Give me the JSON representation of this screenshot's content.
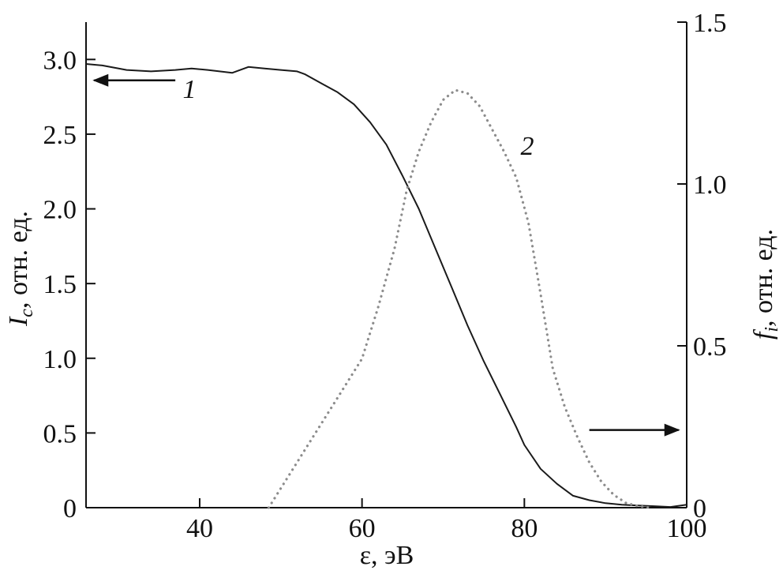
{
  "chart_data": {
    "type": "line",
    "xlabel": "ε, эВ",
    "ylabel_left": {
      "symbol": "I",
      "subscript": "c",
      "rest": ", отн. ед."
    },
    "ylabel_right": {
      "symbol": "f",
      "subscript": "i",
      "rest": ", отн. ед."
    },
    "xlim": [
      26,
      100
    ],
    "ylim_left": [
      0,
      3.25
    ],
    "ylim_right": [
      0,
      1.5
    ],
    "x_ticks": [
      "40",
      "60",
      "80",
      "100"
    ],
    "x_tick_values": [
      40,
      60,
      80,
      100
    ],
    "y_left_ticks": [
      "0",
      "0.5",
      "1.0",
      "1.5",
      "2.0",
      "2.5",
      "3.0"
    ],
    "y_left_tick_values": [
      0,
      0.5,
      1.0,
      1.5,
      2.0,
      2.5,
      3.0
    ],
    "y_right_ticks": [
      "0",
      "0.5",
      "1.0",
      "1.5"
    ],
    "y_right_tick_values": [
      0,
      0.5,
      1.0,
      1.5
    ],
    "grid": false,
    "series": [
      {
        "label": "1",
        "axis": "left",
        "style": "solid",
        "color": "#1a1a1a",
        "x": [
          26,
          28,
          31,
          34,
          37,
          39,
          41,
          44,
          45,
          46,
          48,
          50,
          52,
          53,
          55,
          57,
          59,
          61,
          63,
          65,
          67,
          69,
          71,
          73,
          75,
          77,
          79,
          80,
          82,
          84,
          86,
          88,
          90,
          92,
          94,
          96,
          98,
          100
        ],
        "y": [
          2.97,
          2.96,
          2.93,
          2.92,
          2.93,
          2.94,
          2.93,
          2.91,
          2.93,
          2.95,
          2.94,
          2.93,
          2.92,
          2.9,
          2.84,
          2.78,
          2.7,
          2.58,
          2.43,
          2.22,
          2.0,
          1.74,
          1.48,
          1.22,
          0.98,
          0.76,
          0.54,
          0.42,
          0.26,
          0.16,
          0.08,
          0.05,
          0.03,
          0.02,
          0.015,
          0.01,
          0.005,
          0.02
        ]
      },
      {
        "label": "2",
        "axis": "right",
        "style": "dotted",
        "color": "#8c8c8c",
        "x": [
          48.5,
          51,
          54,
          57,
          60,
          62,
          64,
          65.5,
          67,
          68.5,
          70,
          71.5,
          73,
          74.5,
          76,
          77.5,
          79,
          80.5,
          82,
          83.5,
          85,
          86.5,
          88,
          89.5,
          91,
          92.5,
          94,
          95.5
        ],
        "y": [
          0.0,
          0.1,
          0.22,
          0.34,
          0.46,
          0.62,
          0.8,
          0.98,
          1.1,
          1.19,
          1.26,
          1.29,
          1.28,
          1.24,
          1.17,
          1.1,
          1.02,
          0.88,
          0.66,
          0.43,
          0.31,
          0.22,
          0.14,
          0.08,
          0.04,
          0.015,
          0.005,
          0.0
        ]
      }
    ],
    "annotations": [
      {
        "type": "arrow",
        "direction": "left",
        "axis": "left",
        "x_from": 37,
        "x_to": 27,
        "y": 2.86
      },
      {
        "type": "arrow",
        "direction": "right",
        "axis": "left",
        "x_from": 88,
        "x_to": 99,
        "y": 0.52
      }
    ]
  }
}
